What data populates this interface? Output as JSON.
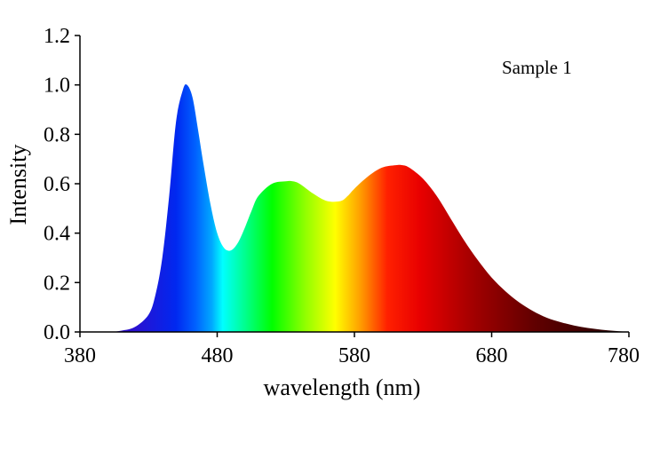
{
  "chart_data": {
    "type": "area",
    "xlabel": "wavelength (nm)",
    "ylabel": "Intensity",
    "annotation": "Sample 1",
    "xlim": [
      380,
      780
    ],
    "ylim": [
      0.0,
      1.2
    ],
    "x_ticks": [
      "380",
      "480",
      "580",
      "680",
      "780"
    ],
    "y_ticks": [
      "0.0",
      "0.2",
      "0.4",
      "0.6",
      "0.8",
      "1.0",
      "1.2"
    ],
    "grid": false,
    "fill": "visible-spectrum gradient (wavelength-colored)",
    "series": [
      {
        "x": [
          380,
          400,
          410,
          420,
          430,
          435,
          440,
          445,
          450,
          455,
          458,
          462,
          466,
          470,
          475,
          480,
          485,
          490,
          495,
          500,
          505,
          510,
          520,
          530,
          535,
          540,
          550,
          560,
          570,
          575,
          580,
          590,
          600,
          610,
          615,
          620,
          630,
          640,
          650,
          660,
          670,
          680,
          690,
          700,
          710,
          720,
          730,
          740,
          750,
          760,
          770,
          780
        ],
        "y": [
          0.0,
          0.0,
          0.005,
          0.02,
          0.07,
          0.15,
          0.3,
          0.55,
          0.85,
          0.98,
          1.0,
          0.95,
          0.82,
          0.68,
          0.52,
          0.4,
          0.34,
          0.33,
          0.36,
          0.42,
          0.49,
          0.55,
          0.6,
          0.61,
          0.61,
          0.6,
          0.56,
          0.53,
          0.53,
          0.55,
          0.58,
          0.63,
          0.665,
          0.675,
          0.675,
          0.665,
          0.62,
          0.55,
          0.46,
          0.37,
          0.29,
          0.22,
          0.165,
          0.12,
          0.085,
          0.058,
          0.04,
          0.026,
          0.016,
          0.009,
          0.004,
          0.0
        ]
      }
    ]
  }
}
